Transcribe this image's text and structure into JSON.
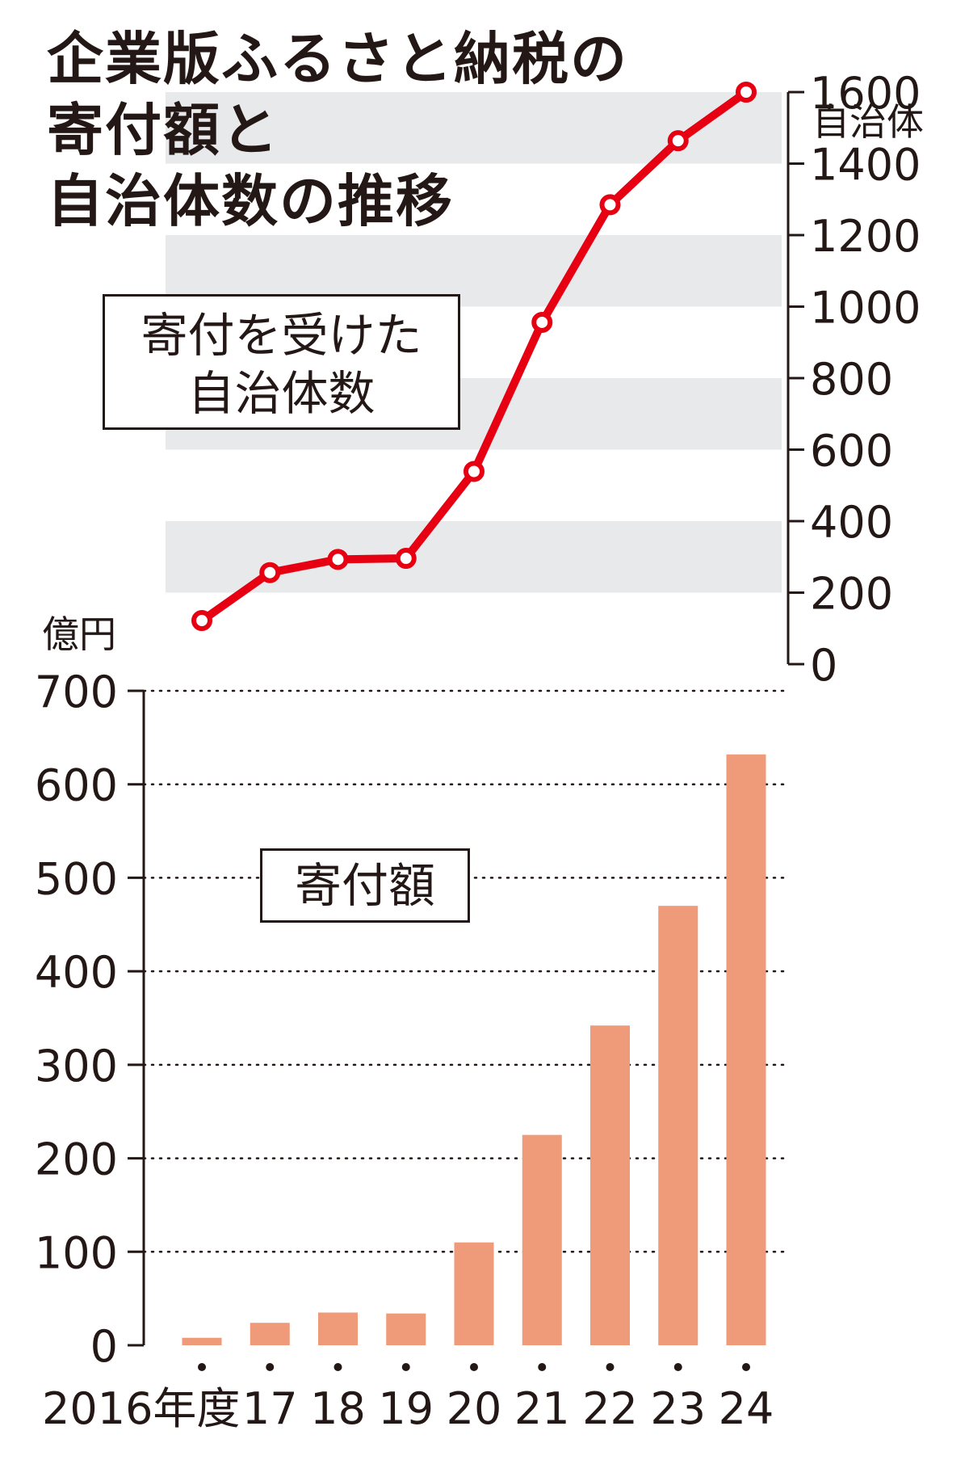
{
  "title": {
    "lines": [
      "企業版ふるさと納税の",
      "寄付額と",
      "自治体数の推移"
    ]
  },
  "chart_data": [
    {
      "type": "line",
      "label_box": [
        "寄付を受けた",
        "自治体数"
      ],
      "unit": "自治体",
      "x": [
        "2016",
        "17",
        "18",
        "19",
        "20",
        "21",
        "22",
        "23",
        "24"
      ],
      "values": [
        122,
        256,
        293,
        296,
        539,
        956,
        1285,
        1464,
        1600
      ],
      "ylim": [
        0,
        1600
      ],
      "yticks": [
        0,
        200,
        400,
        600,
        800,
        1000,
        1200,
        1400,
        1600
      ],
      "axis_side": "right",
      "color": "#e60012",
      "band_color": "#e8e9ea"
    },
    {
      "type": "bar",
      "label_box": "寄付額",
      "unit": "億円",
      "categories": [
        "2016年度",
        "17",
        "18",
        "19",
        "20",
        "21",
        "22",
        "23",
        "24"
      ],
      "values": [
        8,
        24,
        35,
        34,
        110,
        225,
        342,
        470,
        632
      ],
      "ylim": [
        0,
        700
      ],
      "yticks": [
        0,
        100,
        200,
        300,
        400,
        500,
        600,
        700
      ],
      "axis_side": "left",
      "color": "#ef9a78",
      "grid": "dotted"
    }
  ]
}
